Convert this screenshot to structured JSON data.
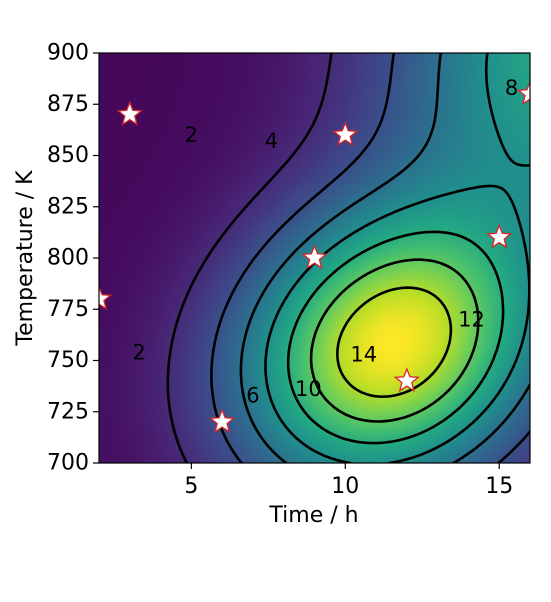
{
  "chart_data": {
    "type": "heatmap",
    "subtype": "filled-contour-with-lines",
    "colormap": "viridis",
    "xlabel": "Time / h",
    "ylabel": "Temperature / K",
    "xlim": [
      2,
      16
    ],
    "ylim": [
      700,
      900
    ],
    "x_ticks": [
      5,
      10,
      15
    ],
    "y_ticks": [
      700,
      725,
      750,
      775,
      800,
      825,
      850,
      875,
      900
    ],
    "grid": false,
    "legend": "none",
    "contour_levels": [
      2,
      4,
      6,
      8,
      10,
      12,
      14
    ],
    "contour_labels": [
      {
        "text": "2",
        "x": 5.0,
        "y": 860
      },
      {
        "text": "4",
        "x": 7.6,
        "y": 857
      },
      {
        "text": "8",
        "x": 15.4,
        "y": 883
      },
      {
        "text": "2",
        "x": 3.3,
        "y": 754
      },
      {
        "text": "6",
        "x": 7.0,
        "y": 733
      },
      {
        "text": "10",
        "x": 8.8,
        "y": 736
      },
      {
        "text": "12",
        "x": 14.1,
        "y": 770
      },
      {
        "text": "14",
        "x": 10.6,
        "y": 753
      }
    ],
    "surface_peak": {
      "x": 11.5,
      "y": 757,
      "z": 15.5
    },
    "scatter_points": {
      "marker": "star",
      "fill": "#ffffff",
      "edge": "#d62728",
      "x": [
        2,
        3,
        6,
        9,
        10,
        12,
        15,
        16
      ],
      "y": [
        780,
        870,
        720,
        800,
        860,
        740,
        810,
        880
      ]
    }
  }
}
